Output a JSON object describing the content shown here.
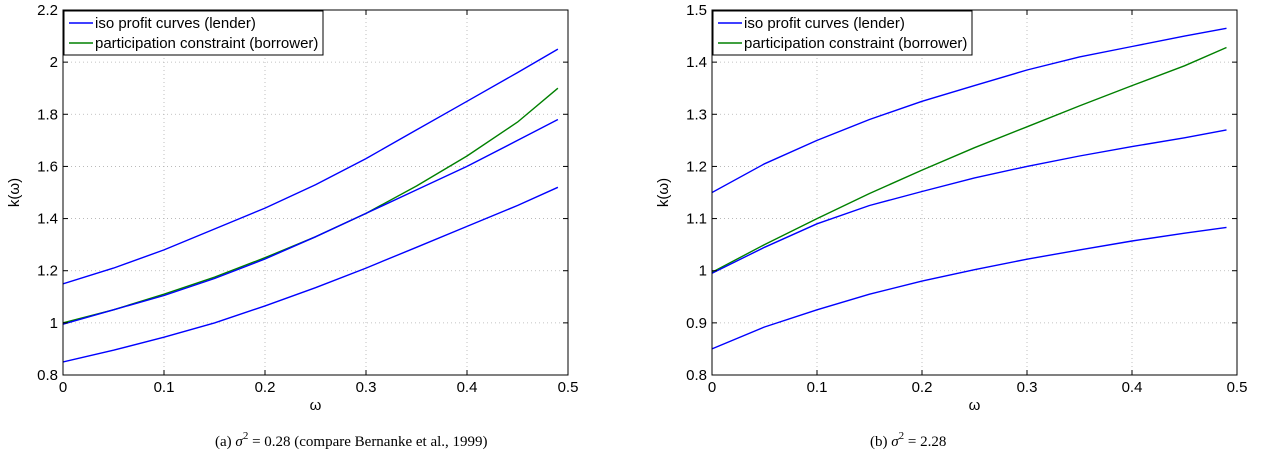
{
  "chart_data": [
    {
      "type": "line",
      "caption": {
        "prefix": "(a) ",
        "sym": "σ",
        "exp": "2",
        "rest": " = 0.28 (compare Bernanke et al., 1999)"
      },
      "xlabel": "ω",
      "ylabel": "k(ω)",
      "xlim": [
        0,
        0.5
      ],
      "ylim": [
        0.8,
        2.2
      ],
      "xticks": [
        0,
        0.1,
        0.2,
        0.3,
        0.4,
        0.5
      ],
      "xtick_labels": [
        "0",
        "0.1",
        "0.2",
        "0.3",
        "0.4",
        "0.5"
      ],
      "yticks": [
        0.8,
        1.0,
        1.2,
        1.4,
        1.6,
        1.8,
        2.0,
        2.2
      ],
      "ytick_labels": [
        "0.8",
        "1",
        "1.2",
        "1.4",
        "1.6",
        "1.8",
        "2",
        "2.2"
      ],
      "grid": true,
      "legend": {
        "placement": "top-left"
      },
      "x": [
        0,
        0.05,
        0.1,
        0.15,
        0.2,
        0.25,
        0.3,
        0.35,
        0.4,
        0.45,
        0.49
      ],
      "series": [
        {
          "name": "iso profit curves (lender)",
          "color": "#0000ff",
          "values": [
            1.15,
            1.21,
            1.28,
            1.36,
            1.44,
            1.53,
            1.63,
            1.74,
            1.85,
            1.96,
            2.05
          ]
        },
        {
          "name": "participation constraint (borrower)",
          "color": "#008000",
          "values": [
            1.0,
            1.05,
            1.11,
            1.175,
            1.25,
            1.33,
            1.42,
            1.525,
            1.64,
            1.77,
            1.9
          ]
        },
        {
          "color": "#0000ff",
          "values": [
            0.995,
            1.05,
            1.105,
            1.17,
            1.245,
            1.33,
            1.42,
            1.51,
            1.6,
            1.7,
            1.78
          ]
        },
        {
          "color": "#0000ff",
          "values": [
            0.85,
            0.895,
            0.945,
            1.0,
            1.065,
            1.135,
            1.21,
            1.29,
            1.37,
            1.45,
            1.52
          ]
        }
      ]
    },
    {
      "type": "line",
      "caption": {
        "prefix": "(b) ",
        "sym": "σ",
        "exp": "2",
        "rest": " = 2.28"
      },
      "xlabel": "ω",
      "ylabel": "k(ω)",
      "xlim": [
        0,
        0.5
      ],
      "ylim": [
        0.8,
        1.5
      ],
      "xticks": [
        0,
        0.1,
        0.2,
        0.3,
        0.4,
        0.5
      ],
      "xtick_labels": [
        "0",
        "0.1",
        "0.2",
        "0.3",
        "0.4",
        "0.5"
      ],
      "yticks": [
        0.8,
        0.9,
        1.0,
        1.1,
        1.2,
        1.3,
        1.4,
        1.5
      ],
      "ytick_labels": [
        "0.8",
        "0.9",
        "1",
        "1.1",
        "1.2",
        "1.3",
        "1.4",
        "1.5"
      ],
      "grid": true,
      "legend": {
        "placement": "top-left"
      },
      "x": [
        0,
        0.05,
        0.1,
        0.15,
        0.2,
        0.25,
        0.3,
        0.35,
        0.4,
        0.45,
        0.49
      ],
      "series": [
        {
          "name": "iso profit curves (lender)",
          "color": "#0000ff",
          "values": [
            1.15,
            1.205,
            1.25,
            1.29,
            1.325,
            1.355,
            1.385,
            1.41,
            1.43,
            1.45,
            1.465
          ]
        },
        {
          "name": "participation constraint (borrower)",
          "color": "#008000",
          "values": [
            0.997,
            1.05,
            1.1,
            1.148,
            1.193,
            1.236,
            1.276,
            1.316,
            1.355,
            1.393,
            1.428
          ]
        },
        {
          "color": "#0000ff",
          "values": [
            0.995,
            1.045,
            1.09,
            1.125,
            1.152,
            1.178,
            1.2,
            1.22,
            1.238,
            1.255,
            1.27
          ]
        },
        {
          "color": "#0000ff",
          "values": [
            0.85,
            0.892,
            0.925,
            0.955,
            0.98,
            1.002,
            1.022,
            1.04,
            1.057,
            1.072,
            1.083
          ]
        }
      ]
    }
  ]
}
